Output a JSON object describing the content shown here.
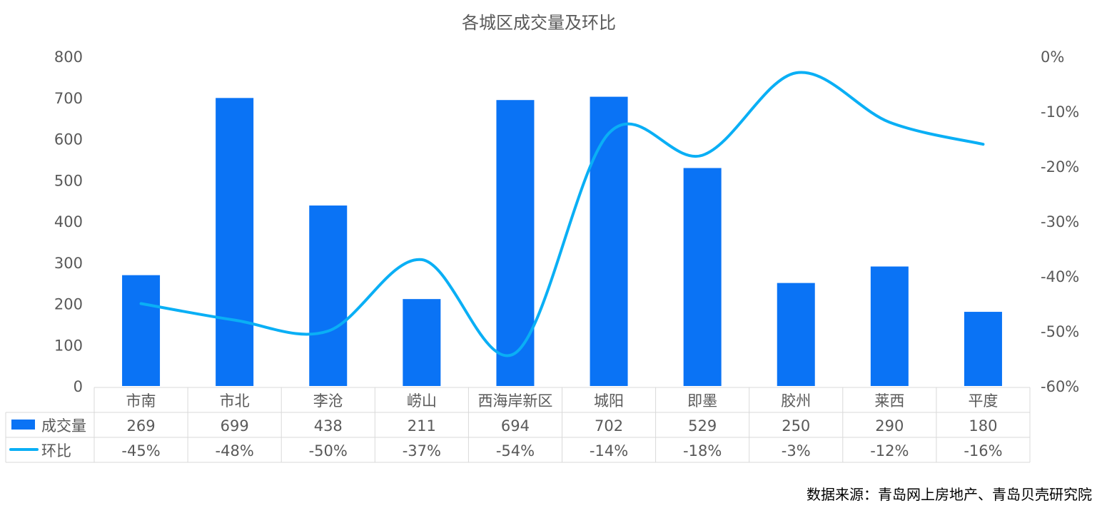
{
  "chart_data": {
    "type": "bar",
    "title": "各城区成交量及环比",
    "categories": [
      "市南",
      "市北",
      "李沧",
      "崂山",
      "西海岸新区",
      "城阳",
      "即墨",
      "胶州",
      "莱西",
      "平度"
    ],
    "series": [
      {
        "name": "成交量",
        "type": "bar",
        "axis": "left",
        "values": [
          269,
          699,
          438,
          211,
          694,
          702,
          529,
          250,
          290,
          180
        ],
        "labels": [
          "269",
          "699",
          "438",
          "211",
          "694",
          "702",
          "529",
          "250",
          "290",
          "180"
        ]
      },
      {
        "name": "环比",
        "type": "line",
        "smooth": true,
        "axis": "right",
        "values": [
          -45,
          -48,
          -50,
          -37,
          -54,
          -14,
          -18,
          -3,
          -12,
          -16
        ],
        "labels": [
          "-45%",
          "-48%",
          "-50%",
          "-37%",
          "-54%",
          "-14%",
          "-18%",
          "-3%",
          "-12%",
          "-16%"
        ]
      }
    ],
    "y_left": {
      "min": 0,
      "max": 800,
      "ticks": [
        "0",
        "100",
        "200",
        "300",
        "400",
        "500",
        "600",
        "700",
        "800"
      ]
    },
    "y_right": {
      "min": -60,
      "max": 0,
      "ticks": [
        "-60%",
        "-50%",
        "-40%",
        "-30%",
        "-20%",
        "-10%",
        "0%"
      ]
    },
    "data_table": true,
    "grid": false,
    "colors": {
      "bar": "#0A73F5",
      "line": "#0AAFF5",
      "text": "#595959",
      "table_border": "#D9D9D9"
    }
  },
  "source": "数据来源：青岛网上房地产、青岛贝壳研究院"
}
